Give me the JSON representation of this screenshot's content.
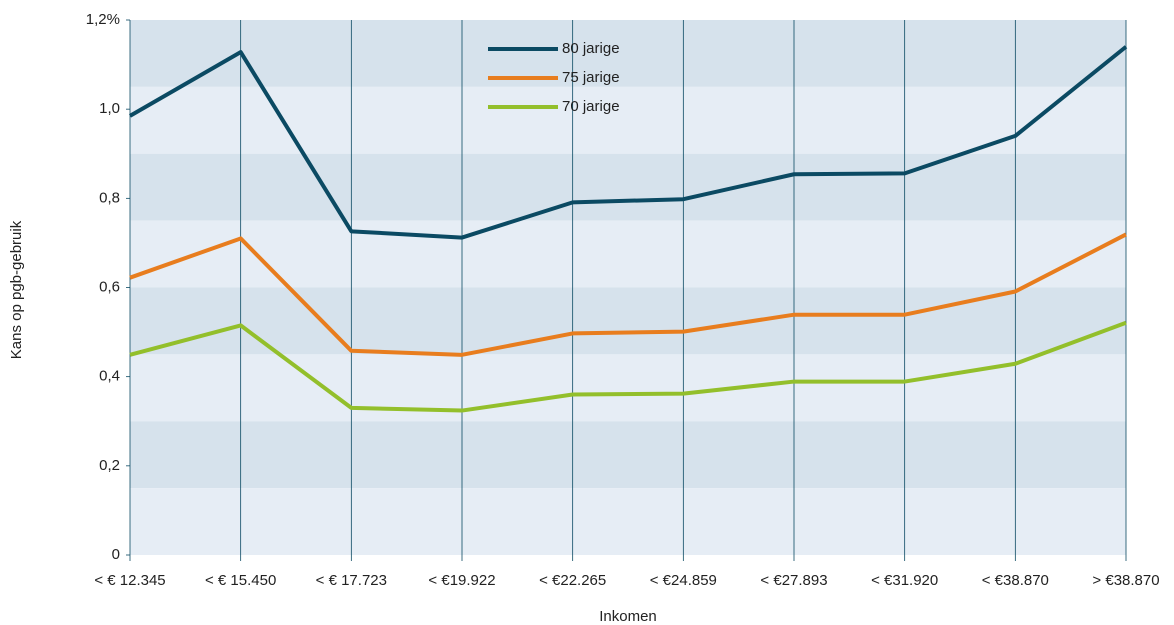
{
  "chart_data": {
    "type": "line",
    "xlabel": "Inkomen",
    "ylabel": "Kans op pgb-gebruik",
    "categories": [
      "< € 12.345",
      "< € 15.450",
      "< € 17.723",
      "< €19.922",
      "< €22.265",
      "< €24.859",
      "< €27.893",
      "< €31.920",
      "< €38.870",
      "> €38.870"
    ],
    "series": [
      {
        "name": "80 jarige",
        "color": "#0b4a63",
        "values": [
          0.985,
          1.128,
          0.726,
          0.712,
          0.791,
          0.798,
          0.854,
          0.856,
          0.94,
          1.14
        ]
      },
      {
        "name": "75 jarige",
        "color": "#e87d1e",
        "values": [
          0.622,
          0.71,
          0.458,
          0.449,
          0.497,
          0.501,
          0.539,
          0.539,
          0.591,
          0.719
        ]
      },
      {
        "name": "70 jarige",
        "color": "#93bf2b",
        "values": [
          0.449,
          0.515,
          0.33,
          0.324,
          0.36,
          0.362,
          0.389,
          0.389,
          0.429,
          0.521
        ]
      }
    ],
    "ylim": [
      0,
      1.2
    ],
    "yticks": [
      0,
      {
        "value": 0.2,
        "label": "0,2"
      },
      {
        "value": 0.4,
        "label": "0,4"
      },
      {
        "value": 0.6,
        "label": "0,6"
      },
      {
        "value": 0.8,
        "label": "0,8"
      },
      {
        "value": 1.0,
        "label": "1,0"
      },
      {
        "value": 1.2,
        "label": "1,2%"
      }
    ],
    "legend": "top-center"
  }
}
